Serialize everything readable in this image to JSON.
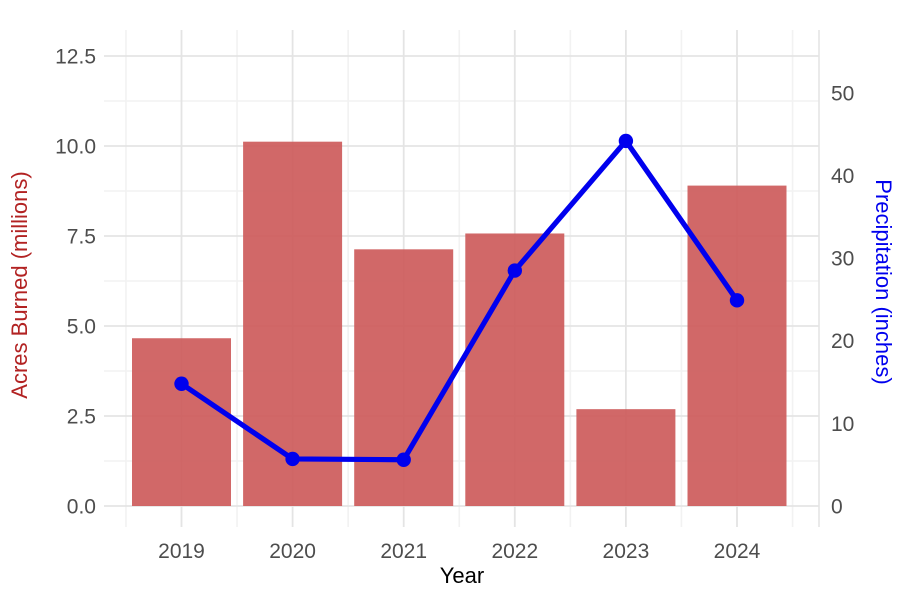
{
  "chart_data": {
    "type": "combo",
    "title": "",
    "categories": [
      "2019",
      "2020",
      "2021",
      "2022",
      "2023",
      "2024"
    ],
    "series": [
      {
        "name": "Acres Burned (millions)",
        "type": "bar",
        "axis": "left",
        "color": "#cd5c5c",
        "values": [
          4.66,
          10.12,
          7.13,
          7.57,
          2.69,
          8.9
        ]
      },
      {
        "name": "Precipitation (inches)",
        "type": "line",
        "axis": "right",
        "color": "#0000ee",
        "values": [
          14.8,
          5.7,
          5.6,
          28.5,
          44.2,
          24.9
        ]
      }
    ],
    "x_axis": {
      "label": "Year",
      "tick_labels": [
        "2019",
        "2020",
        "2021",
        "2022",
        "2023",
        "2024"
      ]
    },
    "left_axis": {
      "label": "Acres Burned (millions)",
      "color": "#b22222",
      "ticks": [
        0,
        2.5,
        5,
        7.5,
        10,
        12.5
      ],
      "tick_labels": [
        "0.0",
        "2.5",
        "5.0",
        "7.5",
        "10.0",
        "12.5"
      ],
      "minor_ticks": [
        1.25,
        3.75,
        6.25,
        8.75,
        11.25
      ],
      "range": [
        -0.6,
        13.2
      ]
    },
    "right_axis": {
      "label": "Precipitation (inches)",
      "color": "#0000ee",
      "ticks": [
        0,
        10,
        20,
        30,
        40,
        50
      ],
      "tick_labels": [
        "0",
        "10",
        "20",
        "30",
        "40",
        "50"
      ],
      "range": [
        -2.8,
        57.5
      ]
    },
    "grid": true,
    "legend": false,
    "styles": {
      "tick_color": "#4d4d4d",
      "x_title_color": "#000000",
      "grid_major": "#e4e4e4",
      "grid_minor": "#f2f2f2",
      "background": "#ffffff"
    }
  }
}
